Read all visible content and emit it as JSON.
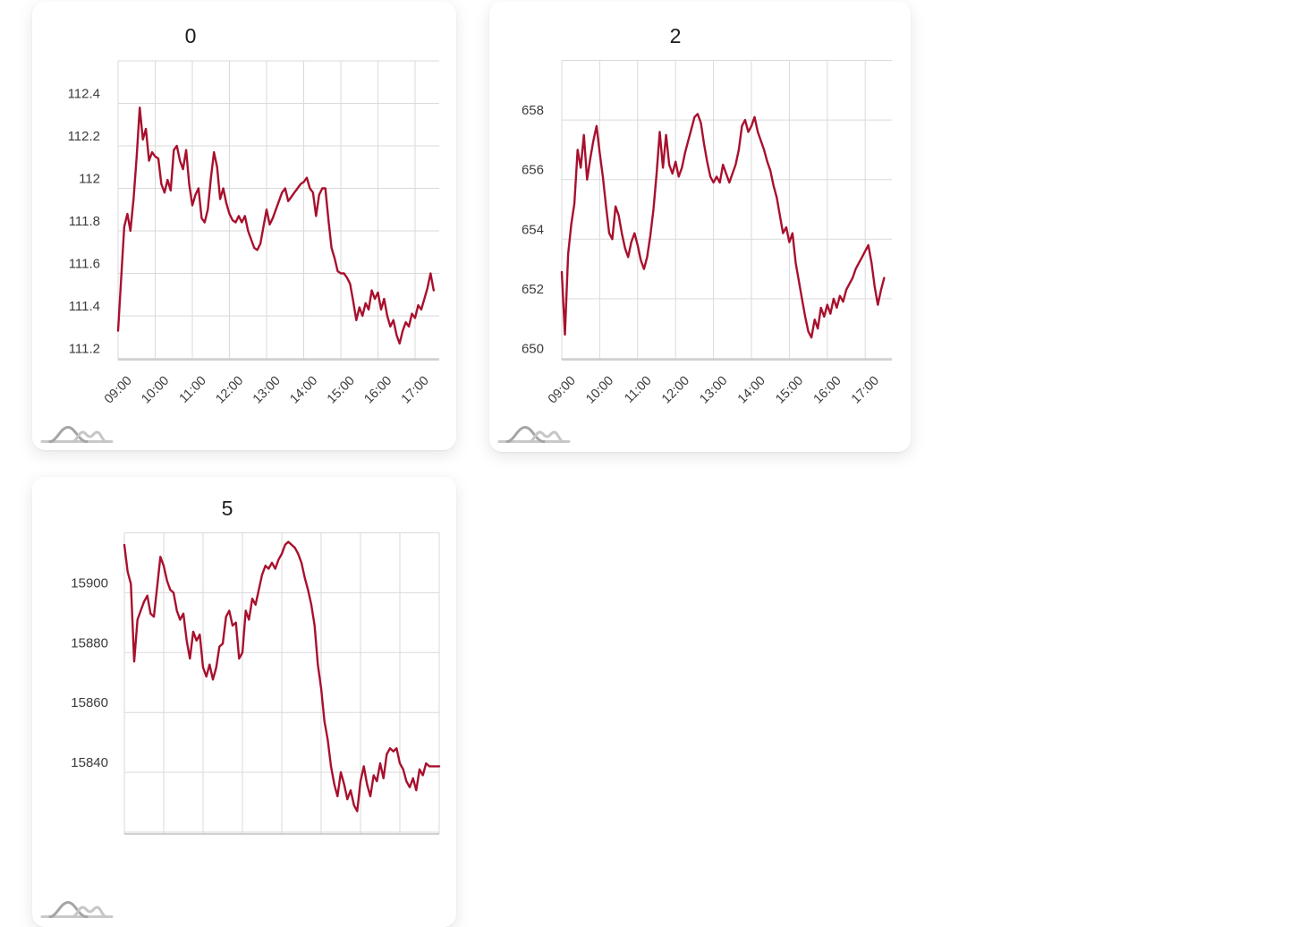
{
  "page": {
    "background_color": "#ffffff"
  },
  "theme": {
    "card_background": "#ffffff",
    "line_color": "#a8102d",
    "grid_color": "#dadada",
    "axis_line_color": "#c2c2c2",
    "tick_label_color": "#3c3c3c",
    "title_color": "#1b1b1b",
    "watermark_icon": "wave-curves-icon",
    "watermark_color": "#b5b5b5"
  },
  "chart_data": [
    {
      "type": "line",
      "title": "0",
      "legend": false,
      "grid": true,
      "x_start": "09:00",
      "x_step_minutes": 5,
      "x_tick_labels": [
        "09:00",
        "10:00",
        "11:00",
        "12:00",
        "13:00",
        "14:00",
        "15:00",
        "16:00",
        "17:00"
      ],
      "y_ticks": [
        112.4,
        112.2,
        112,
        111.8,
        111.6,
        111.4,
        111.2
      ],
      "ylim": [
        111.2,
        112.6
      ],
      "y_grid_step": 0.2,
      "values": [
        111.33,
        111.58,
        111.82,
        111.88,
        111.8,
        111.95,
        112.15,
        112.38,
        112.23,
        112.28,
        112.13,
        112.17,
        112.15,
        112.14,
        112.02,
        111.98,
        112.04,
        111.99,
        112.18,
        112.2,
        112.13,
        112.09,
        112.18,
        112.02,
        111.92,
        111.97,
        112.0,
        111.86,
        111.84,
        111.9,
        112.05,
        112.17,
        112.1,
        111.95,
        112.0,
        111.93,
        111.88,
        111.85,
        111.84,
        111.87,
        111.84,
        111.87,
        111.8,
        111.76,
        111.72,
        111.71,
        111.74,
        111.82,
        111.9,
        111.83,
        111.86,
        111.9,
        111.94,
        111.98,
        112.0,
        111.94,
        111.96,
        111.98,
        112.0,
        112.02,
        112.03,
        112.05,
        112.0,
        111.98,
        111.87,
        111.97,
        112.0,
        112.0,
        111.85,
        111.72,
        111.67,
        111.61,
        111.6,
        111.6,
        111.58,
        111.55,
        111.47,
        111.38,
        111.44,
        111.4,
        111.46,
        111.43,
        111.52,
        111.48,
        111.51,
        111.43,
        111.48,
        111.4,
        111.35,
        111.38,
        111.31,
        111.27,
        111.33,
        111.37,
        111.35,
        111.41,
        111.39,
        111.45,
        111.43,
        111.48,
        111.53,
        111.6,
        111.52
      ]
    },
    {
      "type": "line",
      "title": "2",
      "legend": false,
      "grid": true,
      "x_start": "09:00",
      "x_step_minutes": 5,
      "x_tick_labels": [
        "09:00",
        "10:00",
        "11:00",
        "12:00",
        "13:00",
        "14:00",
        "15:00",
        "16:00",
        "17:00"
      ],
      "y_ticks": [
        658,
        656,
        654,
        652,
        650
      ],
      "ylim": [
        650,
        660
      ],
      "y_grid_step": 2,
      "values": [
        652.9,
        650.8,
        653.5,
        654.5,
        655.2,
        657.0,
        656.4,
        657.5,
        656.0,
        656.7,
        657.3,
        657.8,
        656.9,
        656.1,
        655.1,
        654.2,
        654.0,
        655.1,
        654.8,
        654.2,
        653.7,
        653.4,
        653.9,
        654.2,
        653.8,
        653.3,
        653.0,
        653.4,
        654.1,
        655.0,
        656.2,
        657.6,
        656.4,
        657.5,
        656.5,
        656.2,
        656.6,
        656.1,
        656.4,
        656.9,
        657.3,
        657.7,
        658.1,
        658.2,
        657.9,
        657.2,
        656.6,
        656.1,
        655.9,
        656.1,
        655.9,
        656.5,
        656.2,
        655.9,
        656.2,
        656.5,
        657.0,
        657.8,
        658.0,
        657.6,
        657.8,
        658.1,
        657.6,
        657.3,
        657.0,
        656.6,
        656.3,
        655.8,
        655.4,
        654.8,
        654.2,
        654.4,
        653.9,
        654.2,
        653.2,
        652.6,
        652.0,
        651.4,
        650.9,
        650.7,
        651.3,
        651.0,
        651.7,
        651.4,
        651.8,
        651.5,
        652.0,
        651.7,
        652.1,
        651.9,
        652.3,
        652.5,
        652.7,
        653.0,
        653.2,
        653.4,
        653.6,
        653.8,
        653.2,
        652.4,
        651.8,
        652.3,
        652.7
      ]
    },
    {
      "type": "line",
      "title": "5",
      "legend": false,
      "grid": true,
      "x_start": "09:00",
      "x_step_minutes": 5,
      "x_tick_labels": [],
      "y_ticks": [
        15900,
        15880,
        15860,
        15840
      ],
      "ylim": [
        15820,
        15920
      ],
      "y_grid_step": 20,
      "values": [
        15916,
        15907,
        15903,
        15877,
        15891,
        15894,
        15897,
        15899,
        15893,
        15892,
        15902,
        15912,
        15909,
        15904,
        15901,
        15900,
        15894,
        15891,
        15893,
        15884,
        15878,
        15887,
        15884,
        15886,
        15875,
        15872,
        15876,
        15871,
        15875,
        15882,
        15883,
        15892,
        15894,
        15889,
        15890,
        15878,
        15880,
        15894,
        15891,
        15898,
        15896,
        15901,
        15906,
        15909,
        15908,
        15910,
        15908,
        15911,
        15913,
        15916,
        15917,
        15916,
        15915,
        15913,
        15910,
        15905,
        15901,
        15896,
        15889,
        15876,
        15868,
        15857,
        15851,
        15842,
        15836,
        15832,
        15840,
        15836,
        15831,
        15834,
        15829,
        15827,
        15837,
        15842,
        15836,
        15832,
        15839,
        15837,
        15843,
        15838,
        15846,
        15848,
        15847,
        15848,
        15843,
        15841,
        15837,
        15835,
        15838,
        15834,
        15841,
        15839,
        15843,
        15842,
        15842,
        15842,
        15842
      ]
    }
  ]
}
